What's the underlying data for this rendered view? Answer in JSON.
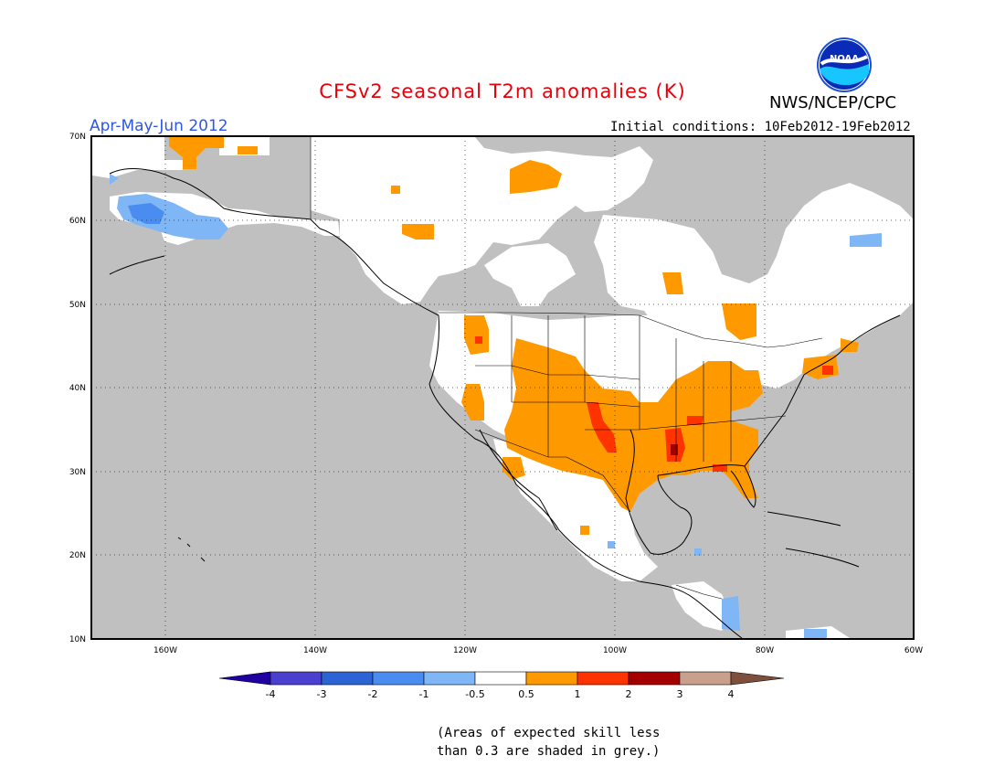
{
  "title": "CFSv2 seasonal T2m anomalies (K)",
  "season": "Apr-May-Jun 2012",
  "agency": "NWS/NCEP/CPC",
  "logo_text": "NOAA",
  "initial_conditions": "Initial conditions: 10Feb2012-19Feb2012",
  "lat_labels": [
    "70N",
    "60N",
    "50N",
    "40N",
    "30N",
    "20N",
    "10N"
  ],
  "lon_labels": [
    "160W",
    "140W",
    "120W",
    "100W",
    "80W",
    "60W"
  ],
  "colorbar": {
    "labels": [
      "-4",
      "-3",
      "-2",
      "-1",
      "-0.5",
      "0.5",
      "1",
      "2",
      "3",
      "4"
    ],
    "colors": [
      "#1e00a0",
      "#4a3fcf",
      "#2d64d4",
      "#4a8cf0",
      "#7fb6f5",
      "#ffffff",
      "#ff9900",
      "#ff3300",
      "#a50000",
      "#c8a08c",
      "#7d4f3c"
    ]
  },
  "note_line1": "(Areas of expected skill less",
  "note_line2": "than 0.3 are shaded in grey.)",
  "colors": {
    "grey": "#c0c0c0",
    "orange": "#ff9900",
    "red": "#ff3300",
    "darkred": "#c81414",
    "lightblue": "#7fb6f5",
    "blue": "#4a8cf0"
  }
}
